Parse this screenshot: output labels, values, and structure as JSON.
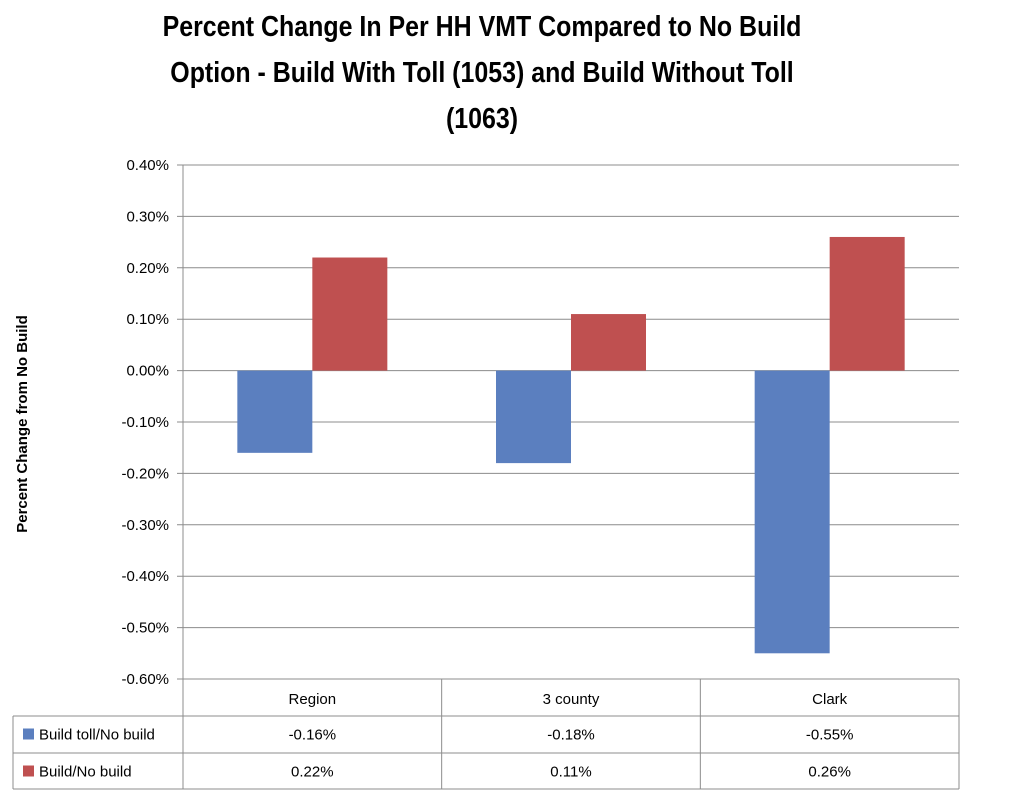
{
  "chart_data": {
    "type": "bar",
    "title_lines": [
      "Percent Change In Per HH VMT Compared to No Build",
      "Option - Build With Toll (1053) and Build Without Toll",
      "(1063)"
    ],
    "ylabel": "Percent Change from No Build",
    "categories": [
      "Region",
      "3 county",
      "Clark"
    ],
    "ylim": [
      -0.6,
      0.4
    ],
    "yticks": [
      0.4,
      0.3,
      0.2,
      0.1,
      0.0,
      -0.1,
      -0.2,
      -0.3,
      -0.4,
      -0.5,
      -0.6
    ],
    "ytick_labels": [
      "0.40%",
      "0.30%",
      "0.20%",
      "0.10%",
      "0.00%",
      "-0.10%",
      "-0.20%",
      "-0.30%",
      "-0.40%",
      "-0.50%",
      "-0.60%"
    ],
    "grid": true,
    "legend": "data-table",
    "series": [
      {
        "name": "Build toll/No build",
        "color": "#5b7fbf",
        "values": [
          -0.16,
          -0.18,
          -0.55
        ],
        "labels": [
          "-0.16%",
          "-0.18%",
          "-0.55%"
        ]
      },
      {
        "name": "Build/No build",
        "color": "#bf5050",
        "values": [
          0.22,
          0.11,
          0.26
        ],
        "labels": [
          "0.22%",
          "0.11%",
          "0.26%"
        ]
      }
    ]
  }
}
